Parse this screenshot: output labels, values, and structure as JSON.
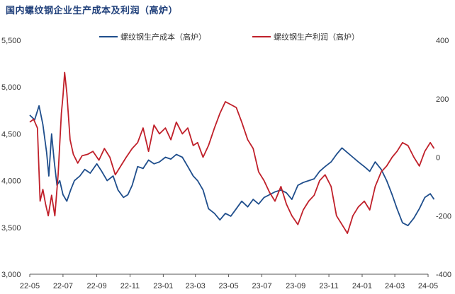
{
  "title": "国内螺纹钢企业生产成本及利润（高炉）",
  "chart_data": {
    "type": "line",
    "legend_position": "top-center",
    "grid": false,
    "x_ticks": [
      "22-05",
      "22-07",
      "22-09",
      "22-11",
      "23-01",
      "23-03",
      "23-05",
      "23-07",
      "23-09",
      "23-11",
      "24-01",
      "24-03",
      "24-05"
    ],
    "y_left": {
      "min": 3000,
      "max": 5500,
      "ticks": [
        "3,000",
        "3,500",
        "4,000",
        "4,500",
        "5,000",
        "5,500"
      ]
    },
    "y_right": {
      "min": -400,
      "max": 400,
      "ticks": [
        "-400",
        "-200",
        "0",
        "200",
        "400"
      ]
    },
    "series": [
      {
        "name": "螺纹钢生产成本（高炉）",
        "axis": "left",
        "color": "#1f4e8c",
        "x": [
          "2022-05-01",
          "2022-05-10",
          "2022-05-18",
          "2022-05-25",
          "2022-06-01",
          "2022-06-05",
          "2022-06-10",
          "2022-06-15",
          "2022-06-20",
          "2022-06-25",
          "2022-07-01",
          "2022-07-08",
          "2022-07-15",
          "2022-07-22",
          "2022-08-01",
          "2022-08-10",
          "2022-08-20",
          "2022-09-01",
          "2022-09-10",
          "2022-09-20",
          "2022-10-01",
          "2022-10-10",
          "2022-10-20",
          "2022-10-28",
          "2022-11-05",
          "2022-11-15",
          "2022-11-25",
          "2022-12-05",
          "2022-12-15",
          "2022-12-25",
          "2023-01-05",
          "2023-01-15",
          "2023-01-25",
          "2023-02-05",
          "2023-02-15",
          "2023-02-25",
          "2023-03-05",
          "2023-03-15",
          "2023-03-25",
          "2023-04-05",
          "2023-04-15",
          "2023-04-25",
          "2023-05-05",
          "2023-05-15",
          "2023-05-25",
          "2023-06-05",
          "2023-06-15",
          "2023-06-25",
          "2023-07-05",
          "2023-07-15",
          "2023-07-25",
          "2023-08-05",
          "2023-08-15",
          "2023-08-25",
          "2023-09-05",
          "2023-09-15",
          "2023-09-25",
          "2023-10-05",
          "2023-10-15",
          "2023-10-25",
          "2023-11-05",
          "2023-11-15",
          "2023-11-25",
          "2023-12-05",
          "2023-12-15",
          "2023-12-25",
          "2024-01-05",
          "2024-01-15",
          "2024-01-25",
          "2024-02-05",
          "2024-02-15",
          "2024-02-25",
          "2024-03-05",
          "2024-03-15",
          "2024-03-25",
          "2024-04-05",
          "2024-04-15",
          "2024-04-25",
          "2024-05-05",
          "2024-05-12"
        ],
        "values": [
          4700,
          4650,
          4800,
          4600,
          4300,
          4050,
          4500,
          4200,
          3950,
          4000,
          3850,
          3780,
          3900,
          4000,
          4050,
          4120,
          4080,
          4180,
          4100,
          4000,
          4050,
          3900,
          3820,
          3850,
          3950,
          4150,
          4130,
          4220,
          4180,
          4200,
          4250,
          4230,
          4280,
          4250,
          4150,
          4050,
          4000,
          3900,
          3700,
          3650,
          3580,
          3650,
          3620,
          3700,
          3780,
          3720,
          3800,
          3750,
          3820,
          3850,
          3880,
          3900,
          3870,
          3800,
          3950,
          3980,
          4000,
          4020,
          4100,
          4150,
          4200,
          4280,
          4350,
          4300,
          4250,
          4200,
          4150,
          4100,
          4200,
          4120,
          4000,
          3850,
          3700,
          3550,
          3520,
          3600,
          3700,
          3820,
          3860,
          3800
        ]
      },
      {
        "name": "螺纹钢生产利润（高炉）",
        "axis": "right",
        "color": "#c0202a",
        "x": [
          "2022-05-01",
          "2022-05-08",
          "2022-05-15",
          "2022-05-20",
          "2022-05-25",
          "2022-05-30",
          "2022-06-04",
          "2022-06-10",
          "2022-06-16",
          "2022-06-22",
          "2022-06-28",
          "2022-07-01",
          "2022-07-04",
          "2022-07-08",
          "2022-07-14",
          "2022-07-20",
          "2022-07-28",
          "2022-08-05",
          "2022-08-15",
          "2022-08-25",
          "2022-09-05",
          "2022-09-15",
          "2022-09-25",
          "2022-10-05",
          "2022-10-15",
          "2022-10-25",
          "2022-11-05",
          "2022-11-15",
          "2022-11-25",
          "2022-12-05",
          "2022-12-15",
          "2022-12-25",
          "2023-01-05",
          "2023-01-15",
          "2023-01-25",
          "2023-02-05",
          "2023-02-15",
          "2023-02-25",
          "2023-03-05",
          "2023-03-15",
          "2023-03-25",
          "2023-04-05",
          "2023-04-15",
          "2023-04-25",
          "2023-05-05",
          "2023-05-15",
          "2023-05-25",
          "2023-06-05",
          "2023-06-15",
          "2023-06-25",
          "2023-07-05",
          "2023-07-15",
          "2023-07-25",
          "2023-08-05",
          "2023-08-15",
          "2023-08-25",
          "2023-09-05",
          "2023-09-15",
          "2023-09-25",
          "2023-10-05",
          "2023-10-15",
          "2023-10-25",
          "2023-11-05",
          "2023-11-15",
          "2023-11-25",
          "2023-12-05",
          "2023-12-15",
          "2023-12-25",
          "2024-01-05",
          "2024-01-15",
          "2024-01-25",
          "2024-02-05",
          "2024-02-15",
          "2024-02-25",
          "2024-03-05",
          "2024-03-15",
          "2024-03-25",
          "2024-04-05",
          "2024-04-15",
          "2024-04-25",
          "2024-05-05",
          "2024-05-12"
        ],
        "values": [
          120,
          130,
          100,
          -150,
          -110,
          -160,
          -200,
          -130,
          -200,
          -60,
          150,
          210,
          290,
          220,
          60,
          10,
          -20,
          5,
          10,
          20,
          -10,
          30,
          0,
          -60,
          -30,
          0,
          30,
          50,
          100,
          20,
          110,
          80,
          100,
          60,
          120,
          80,
          100,
          40,
          50,
          0,
          40,
          100,
          150,
          190,
          180,
          170,
          120,
          60,
          30,
          -50,
          -80,
          -120,
          -150,
          -100,
          -160,
          -200,
          -230,
          -180,
          -150,
          -130,
          -80,
          -60,
          -100,
          -200,
          -230,
          -260,
          -200,
          -170,
          -150,
          -180,
          -100,
          -50,
          -30,
          0,
          20,
          50,
          40,
          0,
          -30,
          20,
          50,
          30
        ]
      }
    ]
  }
}
